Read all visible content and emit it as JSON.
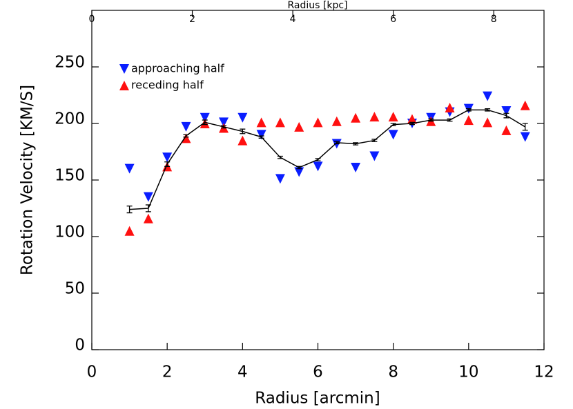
{
  "chart_data": {
    "type": "scatter",
    "xlabel": "Radius [arcmin]",
    "ylabel": "Rotation Velocity [KM/S]",
    "x2label": "Radius [kpc]",
    "x": [
      1,
      1.5,
      2,
      2.5,
      3,
      3.5,
      4,
      4.5,
      5,
      5.5,
      6,
      6.5,
      7,
      7.5,
      8,
      8.5,
      9,
      9.5,
      10,
      10.5,
      11,
      11.5
    ],
    "xlim": [
      0,
      12
    ],
    "xticks": [
      0,
      2,
      4,
      6,
      8,
      10,
      12
    ],
    "x2lim": [
      0,
      9
    ],
    "x2ticks": [
      0,
      2,
      4,
      6,
      8
    ],
    "ylim": [
      0,
      300
    ],
    "yticks": [
      0,
      50,
      100,
      150,
      200,
      250
    ],
    "legend": "upper left",
    "series": [
      {
        "name": "approaching half",
        "color": "#0a1eff",
        "marker": "triangle-down",
        "values": [
          160,
          135,
          170,
          197,
          205,
          201,
          205,
          190,
          151,
          157,
          162,
          182,
          161,
          171,
          190,
          200,
          205,
          210,
          213,
          224,
          211,
          188
        ]
      },
      {
        "name": "receding half",
        "color": "#ff1010",
        "marker": "triangle-up",
        "values": [
          105,
          116,
          162,
          187,
          200,
          196,
          185,
          201,
          201,
          197,
          201,
          202,
          205,
          206,
          206,
          204,
          202,
          214,
          203,
          201,
          194,
          216
        ]
      },
      {
        "color": "#000000",
        "marker": "none",
        "line": true,
        "values": [
          124,
          125,
          164,
          189,
          201,
          197,
          193,
          188,
          170,
          161,
          168,
          183,
          182,
          185,
          199,
          200,
          203,
          203,
          212,
          212,
          207,
          197
        ],
        "errors": [
          3,
          3,
          2,
          1,
          2,
          1,
          2,
          1,
          1,
          1,
          1,
          1,
          1,
          1,
          1,
          1,
          1,
          1,
          1,
          1,
          2,
          3
        ]
      }
    ]
  }
}
